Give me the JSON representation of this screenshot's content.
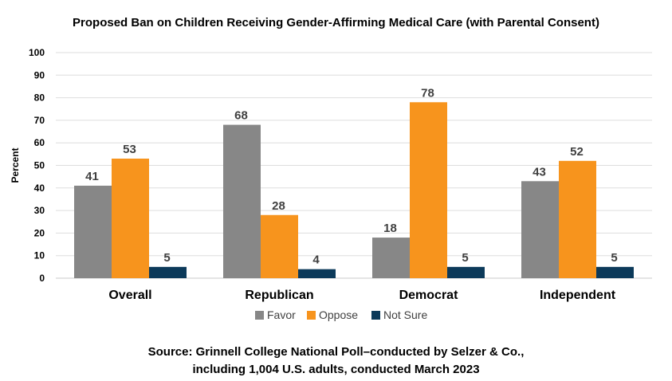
{
  "chart_data": {
    "type": "bar",
    "title": "Proposed Ban on Children Receiving Gender-Affirming Medical Care (with Parental Consent)",
    "ylabel": "Percent",
    "xlabel": "",
    "ylim": [
      0,
      100
    ],
    "yticks": [
      0,
      10,
      20,
      30,
      40,
      50,
      60,
      70,
      80,
      90,
      100
    ],
    "grid": true,
    "legend_position": "bottom",
    "categories": [
      "Overall",
      "Republican",
      "Democrat",
      "Independent"
    ],
    "series": [
      {
        "name": "Favor",
        "color": "#878787",
        "values": [
          41,
          68,
          18,
          43
        ]
      },
      {
        "name": "Oppose",
        "color": "#f7941d",
        "values": [
          53,
          28,
          78,
          52
        ]
      },
      {
        "name": "Not Sure",
        "color": "#0c3a5a",
        "values": [
          5,
          4,
          5,
          5
        ]
      }
    ]
  },
  "source": {
    "line1": "Source:  Grinnell College National Poll–conducted by Selzer & Co.,",
    "line2": "including 1,004 U.S. adults, conducted March 2023"
  }
}
